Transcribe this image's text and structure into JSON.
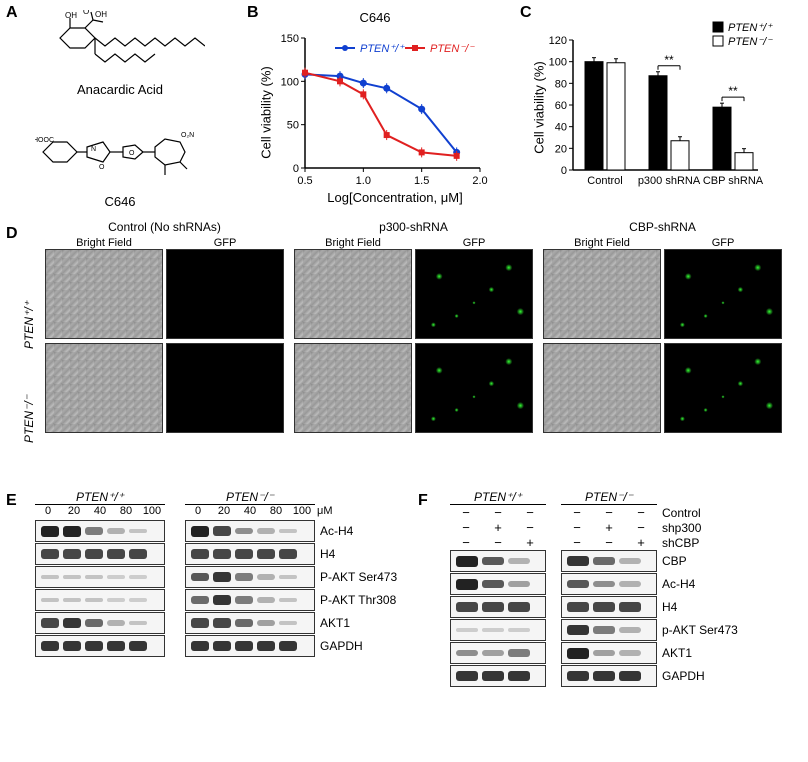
{
  "panelA": {
    "label": "A",
    "compound1": "Anacardic Acid",
    "compound2": "C646"
  },
  "panelB": {
    "label": "B",
    "title": "C646",
    "ylabel": "Cell viability (%)",
    "xlabel": "Log[Concentration, μM]",
    "legend1": "PTEN⁺/⁺",
    "legend2": "PTEN⁻/⁻",
    "legend1_color": "#1040d0",
    "legend2_color": "#e02020",
    "ylim": [
      0,
      150
    ],
    "ytick_step": 50,
    "xlim": [
      0.5,
      2.0
    ],
    "xtick_step": 0.5,
    "series1_x": [
      0.5,
      0.8,
      1.0,
      1.2,
      1.5,
      1.8
    ],
    "series1_y": [
      108,
      106,
      98,
      92,
      68,
      18
    ],
    "series2_x": [
      0.5,
      0.8,
      1.0,
      1.2,
      1.5,
      1.8
    ],
    "series2_y": [
      110,
      100,
      85,
      38,
      18,
      14
    ]
  },
  "panelC": {
    "label": "C",
    "ylabel": "Cell viability (%)",
    "legend1": "PTEN⁺/⁺",
    "legend2": "PTEN⁻/⁻",
    "legend1_color": "#000000",
    "legend2_color": "#ffffff",
    "ylim": [
      0,
      120
    ],
    "ytick_step": 20,
    "categories": [
      "Control",
      "p300 shRNA",
      "CBP shRNA"
    ],
    "values_wt": [
      100,
      87,
      58
    ],
    "values_ko": [
      99,
      27,
      16
    ],
    "significance": "**"
  },
  "panelD": {
    "label": "D",
    "groups": [
      "Control (No shRNAs)",
      "p300-shRNA",
      "CBP-shRNA"
    ],
    "subheaders": [
      "Bright Field",
      "GFP"
    ],
    "rowlabels": [
      "PTEN⁺/⁺",
      "PTEN⁻/⁻"
    ]
  },
  "panelE": {
    "label": "E",
    "genotypes": [
      "PTEN⁺/⁺",
      "PTEN⁻/⁻"
    ],
    "doses": [
      "0",
      "20",
      "40",
      "80",
      "100"
    ],
    "dose_unit": "μM",
    "targets": [
      "Ac-H4",
      "H4",
      "P-AKT Ser473",
      "P-AKT Thr308",
      "AKT1",
      "GAPDH"
    ],
    "bands": {
      "Ac-H4": [
        1.0,
        1.0,
        0.5,
        0.2,
        0.1,
        1.0,
        0.8,
        0.4,
        0.2,
        0.1
      ],
      "H4": [
        0.8,
        0.8,
        0.8,
        0.8,
        0.8,
        0.8,
        0.8,
        0.8,
        0.8,
        0.8
      ],
      "P-AKT Ser473": [
        0.1,
        0.1,
        0.1,
        0.05,
        0.05,
        0.7,
        0.9,
        0.5,
        0.2,
        0.1
      ],
      "P-AKT Thr308": [
        0.1,
        0.1,
        0.1,
        0.05,
        0.05,
        0.6,
        0.9,
        0.5,
        0.2,
        0.1
      ],
      "AKT1": [
        0.8,
        0.9,
        0.6,
        0.2,
        0.1,
        0.8,
        0.8,
        0.6,
        0.3,
        0.1
      ],
      "GAPDH": [
        0.9,
        0.9,
        0.9,
        0.9,
        0.9,
        0.9,
        0.9,
        0.9,
        0.9,
        0.9
      ]
    }
  },
  "panelF": {
    "label": "F",
    "genotypes": [
      "PTEN⁺/⁺",
      "PTEN⁻/⁻"
    ],
    "conditions": [
      "Control",
      "shp300",
      "shCBP"
    ],
    "condition_matrix": [
      [
        "−",
        "−",
        "−",
        "−",
        "−",
        "−"
      ],
      [
        "−",
        "+",
        "−",
        "−",
        "+",
        "−"
      ],
      [
        "−",
        "−",
        "+",
        "−",
        "−",
        "+"
      ]
    ],
    "targets": [
      "CBP",
      "Ac-H4",
      "H4",
      "p-AKT Ser473",
      "AKT1",
      "GAPDH"
    ],
    "bands": {
      "CBP": [
        1.0,
        0.7,
        0.2,
        0.9,
        0.6,
        0.2
      ],
      "Ac-H4": [
        1.0,
        0.7,
        0.3,
        0.7,
        0.4,
        0.2
      ],
      "H4": [
        0.8,
        0.8,
        0.8,
        0.8,
        0.8,
        0.8
      ],
      "p-AKT Ser473": [
        0.05,
        0.05,
        0.05,
        0.9,
        0.5,
        0.2
      ],
      "AKT1": [
        0.4,
        0.3,
        0.5,
        1.0,
        0.3,
        0.2
      ],
      "GAPDH": [
        0.9,
        0.9,
        0.9,
        0.9,
        0.9,
        0.9
      ]
    }
  }
}
